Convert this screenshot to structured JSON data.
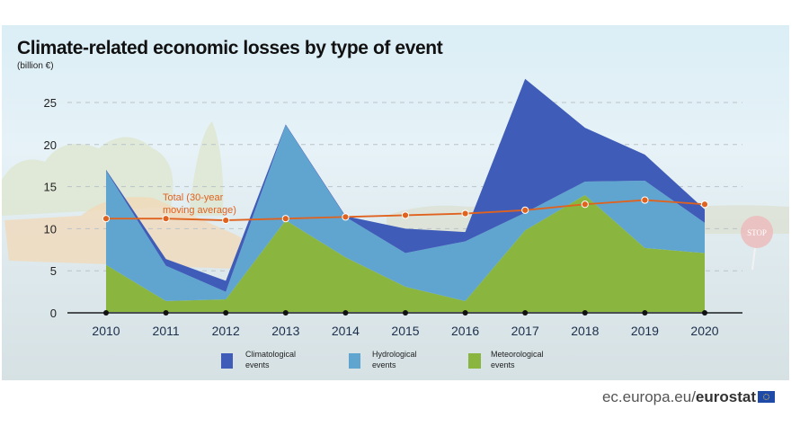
{
  "chart_data": {
    "type": "area",
    "title": "Climate-related economic losses by type of event",
    "subtitle": "(billion €)",
    "xlabel": "",
    "ylabel": "billion €",
    "ylim": [
      0,
      25
    ],
    "yticks": [
      0,
      5,
      10,
      15,
      20,
      25
    ],
    "grid": true,
    "stacked": true,
    "categories": [
      "2010",
      "2011",
      "2012",
      "2013",
      "2014",
      "2015",
      "2016",
      "2017",
      "2018",
      "2019",
      "2020"
    ],
    "series": [
      {
        "name": "Meteorological events",
        "color": "#8ab63f",
        "values": [
          5.7,
          1.4,
          1.6,
          11.0,
          6.6,
          3.1,
          1.4,
          9.8,
          14.0,
          7.7,
          7.1
        ]
      },
      {
        "name": "Hydrological events",
        "color": "#5fa5d0",
        "values": [
          11.2,
          4.2,
          0.9,
          11.3,
          4.8,
          4.0,
          7.1,
          2.1,
          1.6,
          8.0,
          3.6
        ]
      },
      {
        "name": "Climatological events",
        "color": "#3f5cb8",
        "values": [
          0.1,
          0.8,
          1.3,
          0.1,
          0.1,
          2.9,
          1.1,
          15.9,
          6.4,
          3.1,
          1.6
        ]
      }
    ],
    "stacked_totals": [
      17.0,
      6.4,
      3.8,
      22.4,
      11.5,
      10.0,
      9.6,
      27.8,
      22.0,
      18.8,
      12.3
    ],
    "line": {
      "name": "Total (30-year moving average)",
      "color": "#e0621f",
      "values": [
        11.2,
        11.2,
        11.0,
        11.2,
        11.4,
        11.6,
        11.8,
        12.2,
        12.9,
        13.4,
        12.9
      ]
    },
    "annotation": [
      "Total (30-year",
      "moving average)"
    ],
    "legend": [
      {
        "label_line1": "Climatological",
        "label_line2": "events",
        "color": "#3f5cb8"
      },
      {
        "label_line1": "Hydrological",
        "label_line2": "events",
        "color": "#5fa5d0"
      },
      {
        "label_line1": "Meteorological",
        "label_line2": "events",
        "color": "#8ab63f"
      }
    ],
    "legend_position": "bottom-center"
  },
  "footer": {
    "prefix": "ec.europa.eu/",
    "brand": "eurostat"
  }
}
